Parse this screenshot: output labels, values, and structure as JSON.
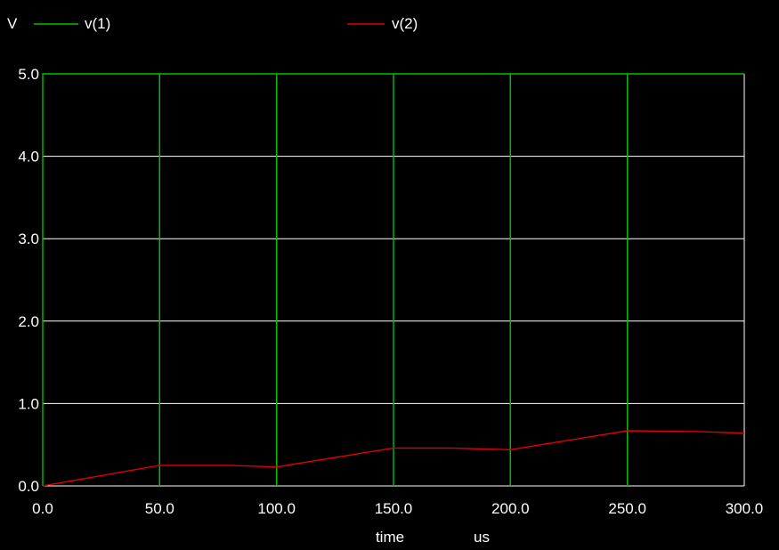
{
  "colors": {
    "background": "#000000",
    "grid": "#ffffff",
    "text": "#ffffff"
  },
  "chart_data": {
    "type": "line",
    "ylabel": "V",
    "xlabel": "time",
    "xunit": "us",
    "xlim": [
      0,
      300
    ],
    "ylim": [
      0,
      5
    ],
    "grid": true,
    "legend_position": "top",
    "x_ticks": [
      0,
      50,
      100,
      150,
      200,
      250,
      300
    ],
    "x_tick_labels": [
      "0.0",
      "50.0",
      "100.0",
      "150.0",
      "200.0",
      "250.0",
      "300.0"
    ],
    "y_ticks": [
      0,
      1,
      2,
      3,
      4,
      5
    ],
    "y_tick_labels": [
      "0.0",
      "1.0",
      "2.0",
      "3.0",
      "4.0",
      "5.0"
    ],
    "series": [
      {
        "name": "v(1)",
        "color": "#00c000",
        "x": [
          0,
          0,
          50,
          50,
          50,
          100,
          100,
          100,
          150,
          150,
          150,
          200,
          200,
          200,
          250,
          250,
          250,
          300
        ],
        "y": [
          0,
          5,
          5,
          0,
          5,
          5,
          0,
          5,
          5,
          0,
          5,
          5,
          0,
          5,
          5,
          0,
          5,
          5
        ]
      },
      {
        "name": "v(2)",
        "color": "#e00000",
        "x": [
          0,
          50,
          80,
          100,
          150,
          175,
          200,
          250,
          280,
          300
        ],
        "y": [
          0,
          0.25,
          0.25,
          0.23,
          0.46,
          0.46,
          0.44,
          0.67,
          0.66,
          0.64
        ]
      }
    ]
  }
}
